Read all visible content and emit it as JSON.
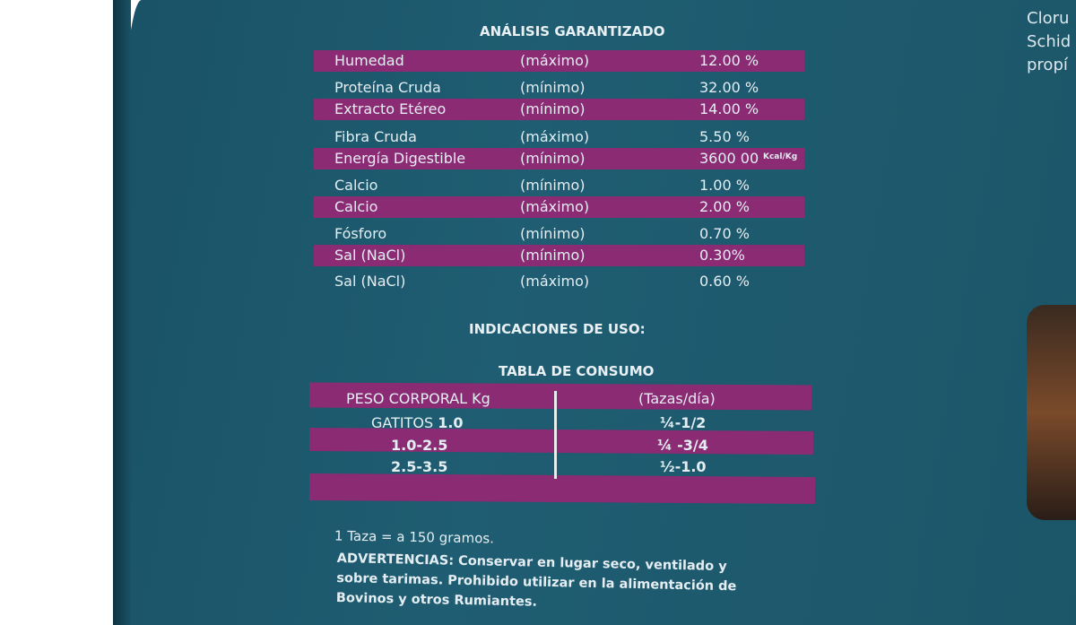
{
  "analysis_title": "ANÁLISIS GARANTIZADO",
  "analysis": [
    {
      "name": "Humedad",
      "qual": "(máximo)",
      "value": "12.00 %"
    },
    {
      "name": "Proteína Cruda",
      "qual": "(mínimo)",
      "value": "32.00 %"
    },
    {
      "name": "Extracto Etéreo",
      "qual": "(mínimo)",
      "value": "14.00 %"
    },
    {
      "name": "Fibra Cruda",
      "qual": "(máximo)",
      "value": "5.50 %"
    },
    {
      "name": "Energía Digestible",
      "qual": "(mínimo)",
      "value": "3600 00",
      "unit": "Kcal/Kg"
    },
    {
      "name": "Calcio",
      "qual": "(mínimo)",
      "value": "1.00 %"
    },
    {
      "name": "Calcio",
      "qual": "(máximo)",
      "value": "2.00 %"
    },
    {
      "name": "Fósforo",
      "qual": "(mínimo)",
      "value": "0.70 %"
    },
    {
      "name": "Sal (NaCl)",
      "qual": "(mínimo)",
      "value": "0.30%"
    },
    {
      "name": "Sal (NaCl)",
      "qual": "(máximo)",
      "value": "0.60 %"
    }
  ],
  "indications_title": "INDICACIONES DE USO:",
  "consumption_title": "TABLA DE CONSUMO",
  "consumption": {
    "headers": [
      "PESO CORPORAL Kg",
      "(Tazas/día)"
    ],
    "rows": [
      [
        "GATITOS",
        "1.0",
        "¼-1/2"
      ],
      [
        "",
        "1.0-2.5",
        "¼ -3/4"
      ],
      [
        "",
        "2.5-3.5",
        "½-1.0"
      ]
    ]
  },
  "cup_note": "1 Taza = a 150 gramos.",
  "warning_label": "ADVERTENCIAS:",
  "warning_lines": [
    "Conservar en lugar seco, ventilado y",
    "sobre tarimas. Prohibido utilizar en la alimentación de",
    "Bovinos y otros Rumiantes."
  ],
  "side_text": [
    "Cloru",
    "Schid",
    "propí"
  ],
  "colors": {
    "bag": "#1f5a6e",
    "band": "#8b2b74",
    "text": "#e4eef2"
  }
}
